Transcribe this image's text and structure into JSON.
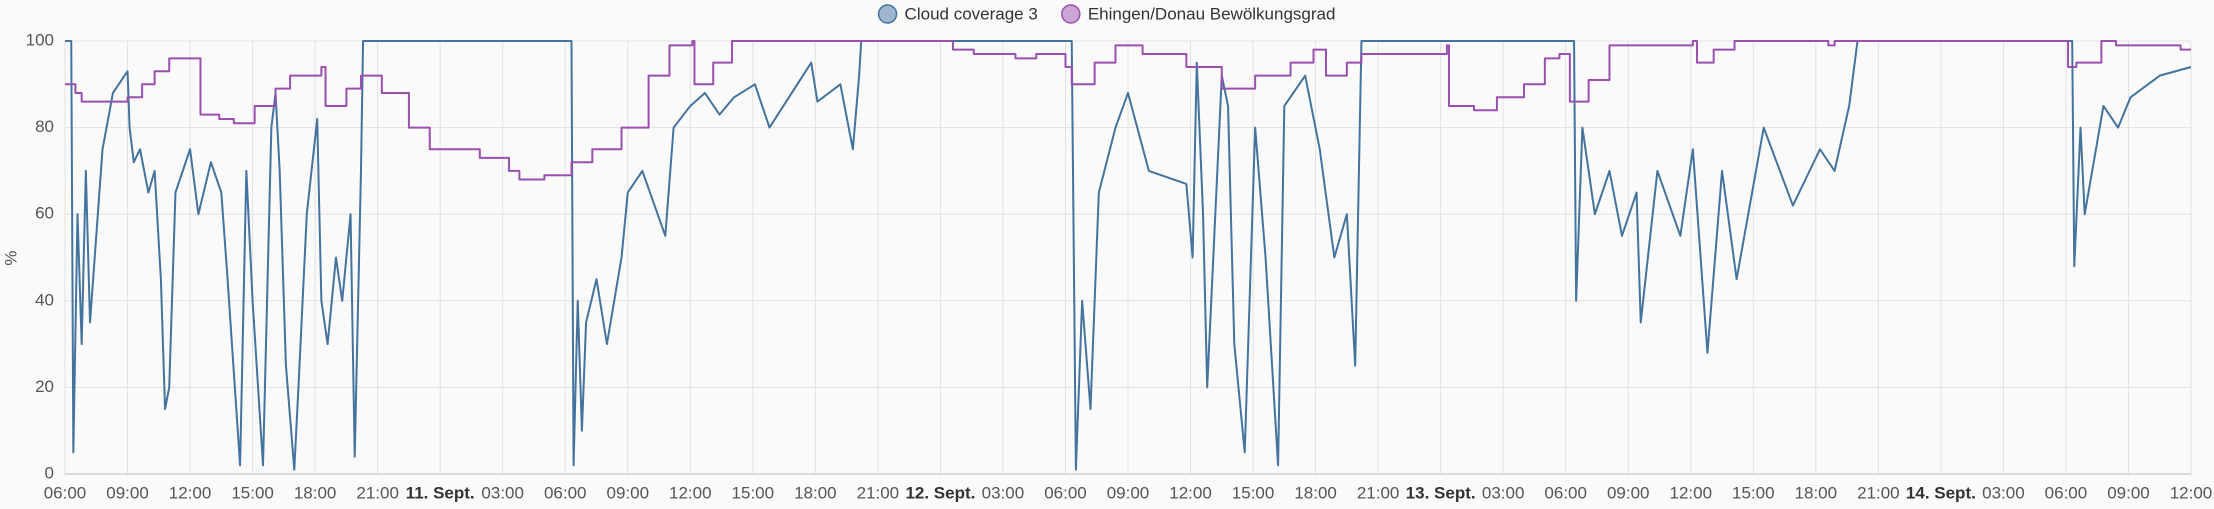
{
  "chart_data": {
    "type": "line",
    "y_label": "%",
    "grid": true,
    "legend": "top",
    "xlim": [
      0,
      102
    ],
    "ylim": [
      0,
      100
    ],
    "yticks": [
      0,
      20,
      40,
      60,
      80,
      100
    ],
    "xticks": [
      {
        "value": 0,
        "label": "06:00"
      },
      {
        "value": 3,
        "label": "09:00"
      },
      {
        "value": 6,
        "label": "12:00"
      },
      {
        "value": 9,
        "label": "15:00"
      },
      {
        "value": 12,
        "label": "18:00"
      },
      {
        "value": 15,
        "label": "21:00"
      },
      {
        "value": 18,
        "label": "11. Sept."
      },
      {
        "value": 21,
        "label": "03:00"
      },
      {
        "value": 24,
        "label": "06:00"
      },
      {
        "value": 27,
        "label": "09:00"
      },
      {
        "value": 30,
        "label": "12:00"
      },
      {
        "value": 33,
        "label": "15:00"
      },
      {
        "value": 36,
        "label": "18:00"
      },
      {
        "value": 39,
        "label": "21:00"
      },
      {
        "value": 42,
        "label": "12. Sept."
      },
      {
        "value": 45,
        "label": "03:00"
      },
      {
        "value": 48,
        "label": "06:00"
      },
      {
        "value": 51,
        "label": "09:00"
      },
      {
        "value": 54,
        "label": "12:00"
      },
      {
        "value": 57,
        "label": "15:00"
      },
      {
        "value": 60,
        "label": "18:00"
      },
      {
        "value": 63,
        "label": "21:00"
      },
      {
        "value": 66,
        "label": "13. Sept."
      },
      {
        "value": 69,
        "label": "03:00"
      },
      {
        "value": 72,
        "label": "06:00"
      },
      {
        "value": 75,
        "label": "09:00"
      },
      {
        "value": 78,
        "label": "12:00"
      },
      {
        "value": 81,
        "label": "15:00"
      },
      {
        "value": 84,
        "label": "18:00"
      },
      {
        "value": 87,
        "label": "21:00"
      },
      {
        "value": 90,
        "label": "14. Sept."
      },
      {
        "value": 93,
        "label": "03:00"
      },
      {
        "value": 96,
        "label": "06:00"
      },
      {
        "value": 99,
        "label": "09:00"
      },
      {
        "value": 102,
        "label": "12:00"
      }
    ],
    "series": [
      {
        "name": "Cloud coverage 3",
        "color": "#44739e",
        "interpolation": "linear",
        "x": [
          0,
          0.3,
          0.4,
          0.6,
          0.8,
          1.0,
          1.2,
          1.5,
          1.8,
          2.3,
          3.0,
          3.1,
          3.3,
          3.6,
          4.0,
          4.3,
          4.6,
          4.8,
          5.0,
          5.3,
          6.0,
          6.4,
          7.0,
          7.5,
          7.8,
          8.4,
          8.7,
          9.0,
          9.5,
          9.9,
          10.1,
          10.3,
          10.6,
          11.0,
          11.2,
          11.6,
          12.1,
          12.3,
          12.6,
          13.0,
          13.3,
          13.7,
          13.9,
          14.2,
          14.3,
          24.3,
          24.4,
          24.6,
          24.8,
          25.0,
          25.5,
          26.0,
          26.7,
          27.0,
          27.7,
          28.8,
          29.2,
          30.0,
          30.7,
          31.4,
          32.1,
          33.1,
          33.8,
          35.8,
          36.1,
          37.2,
          37.8,
          38.1,
          38.2,
          48.3,
          48.5,
          48.8,
          49.2,
          49.6,
          50.4,
          51.0,
          52.0,
          53.8,
          54.1,
          54.3,
          54.6,
          54.8,
          55.5,
          55.8,
          56.1,
          56.6,
          57.1,
          57.6,
          58.2,
          58.5,
          59.5,
          60.2,
          60.9,
          61.5,
          61.9,
          62.2,
          72.4,
          72.5,
          72.8,
          73.4,
          74.1,
          74.7,
          75.4,
          75.6,
          76.4,
          77.5,
          78.1,
          78.8,
          79.5,
          80.2,
          81.5,
          82.9,
          84.2,
          84.9,
          85.6,
          86.0,
          96.3,
          96.4,
          96.7,
          96.9,
          97.8,
          98.5,
          99.1,
          100.5,
          102
        ],
        "values": [
          100,
          100,
          5,
          60,
          30,
          70,
          35,
          55,
          75,
          88,
          93,
          80,
          72,
          75,
          65,
          70,
          45,
          15,
          20,
          65,
          75,
          60,
          72,
          65,
          45,
          2,
          70,
          40,
          2,
          80,
          88,
          70,
          25,
          1,
          20,
          60,
          82,
          40,
          30,
          50,
          40,
          60,
          4,
          70,
          100,
          100,
          2,
          40,
          10,
          35,
          45,
          30,
          50,
          65,
          70,
          55,
          80,
          85,
          88,
          83,
          87,
          90,
          80,
          95,
          86,
          90,
          75,
          92,
          100,
          100,
          1,
          40,
          15,
          65,
          80,
          88,
          70,
          67,
          50,
          95,
          60,
          20,
          92,
          85,
          30,
          5,
          80,
          50,
          2,
          85,
          92,
          75,
          50,
          60,
          25,
          100,
          100,
          40,
          80,
          60,
          70,
          55,
          65,
          35,
          70,
          55,
          75,
          28,
          70,
          45,
          80,
          62,
          75,
          70,
          85,
          100,
          100,
          48,
          80,
          60,
          85,
          80,
          87,
          92,
          94
        ]
      },
      {
        "name": "Ehingen/Donau Bewölkungsgrad",
        "color": "#9b4fae",
        "interpolation": "step",
        "x": [
          0,
          0.5,
          0.8,
          2.0,
          3.0,
          3.7,
          4.3,
          5.0,
          6.4,
          6.5,
          7.4,
          8.1,
          9.1,
          10.1,
          10.8,
          12.3,
          12.5,
          13.5,
          14.2,
          15.2,
          16.5,
          17.5,
          18.6,
          19.9,
          21.3,
          21.8,
          23.0,
          24.3,
          25.3,
          26.7,
          28.0,
          29.0,
          30.1,
          30.2,
          31.1,
          32.0,
          42.2,
          42.6,
          43.6,
          45.6,
          46.6,
          48.0,
          48.3,
          49.4,
          50.4,
          51.7,
          53.8,
          55.5,
          57.1,
          58.8,
          59.9,
          60.5,
          61.5,
          62.2,
          65.3,
          66.3,
          66.4,
          67.6,
          68.7,
          70.0,
          71.0,
          71.7,
          72.2,
          73.1,
          74.1,
          78.1,
          78.3,
          79.1,
          80.1,
          84.2,
          84.6,
          84.9,
          95.9,
          96.1,
          96.5,
          97.7,
          98.4,
          101.2,
          101.5,
          102
        ],
        "values": [
          90,
          88,
          86,
          86,
          87,
          90,
          93,
          96,
          96,
          83,
          82,
          81,
          85,
          89,
          92,
          94,
          85,
          89,
          92,
          88,
          80,
          75,
          75,
          73,
          70,
          68,
          69,
          72,
          75,
          80,
          92,
          99,
          100,
          90,
          95,
          100,
          100,
          98,
          97,
          96,
          97,
          94,
          90,
          95,
          99,
          97,
          94,
          89,
          92,
          95,
          98,
          92,
          95,
          97,
          97,
          99,
          85,
          84,
          87,
          90,
          96,
          97,
          86,
          91,
          99,
          100,
          95,
          98,
          100,
          100,
          99,
          100,
          100,
          94,
          95,
          100,
          99,
          99,
          98,
          98
        ]
      }
    ]
  }
}
